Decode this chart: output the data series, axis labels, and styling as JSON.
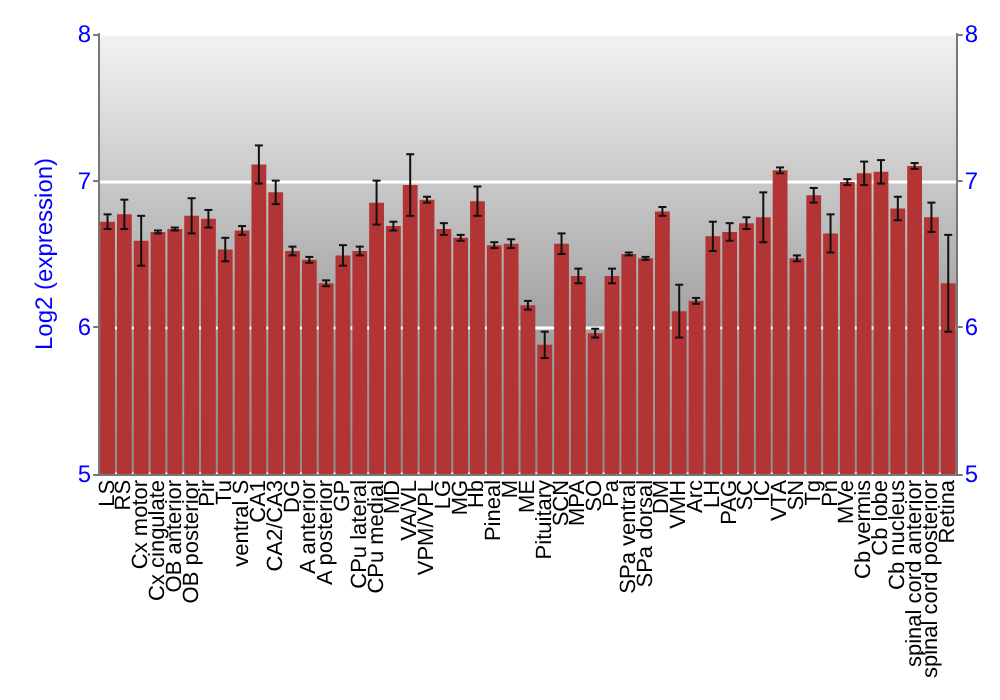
{
  "chart_data": {
    "type": "bar",
    "ylabel": "Log2 (expression)",
    "categories": [
      "LS",
      "RS",
      "Cx motor",
      "Cx cingulate",
      "OB anterior",
      "OB posterior",
      "Pir",
      "Tu",
      "ventral S",
      "CA1",
      "CA2/CA3",
      "DG",
      "A anterior",
      "A posterior",
      "GP",
      "CPu lateral",
      "CPu medial",
      "MD",
      "VA/VL",
      "VPM/VPL",
      "LG",
      "MG",
      "Hb",
      "Pineal",
      "M",
      "ME",
      "Pituitary",
      "SCN",
      "MPA",
      "SO",
      "Pa",
      "SPa ventral",
      "SPa dorsal",
      "DM",
      "VMH",
      "Arc",
      "LH",
      "PAG",
      "SC",
      "IC",
      "VTA",
      "SN",
      "Tg",
      "Pn",
      "MVe",
      "Cb vermis",
      "Cb lobe",
      "Cb nucleus",
      "spinal cord anterior",
      "spinal cord posterior",
      "Retina"
    ],
    "values": [
      6.72,
      6.77,
      6.59,
      6.65,
      6.67,
      6.76,
      6.74,
      6.53,
      6.66,
      7.11,
      6.92,
      6.52,
      6.46,
      6.3,
      6.49,
      6.52,
      6.85,
      6.69,
      6.97,
      6.87,
      6.67,
      6.61,
      6.86,
      6.56,
      6.57,
      6.15,
      5.88,
      6.57,
      6.35,
      5.96,
      6.35,
      6.5,
      6.47,
      6.79,
      6.11,
      6.18,
      6.62,
      6.65,
      6.71,
      6.75,
      7.07,
      6.47,
      6.9,
      6.64,
      6.99,
      7.05,
      7.06,
      6.81,
      7.1,
      6.75,
      6.3
    ],
    "errors": [
      0.05,
      0.1,
      0.17,
      0.01,
      0.01,
      0.12,
      0.06,
      0.08,
      0.03,
      0.13,
      0.08,
      0.03,
      0.02,
      0.02,
      0.07,
      0.03,
      0.15,
      0.03,
      0.21,
      0.02,
      0.04,
      0.02,
      0.1,
      0.02,
      0.03,
      0.03,
      0.09,
      0.07,
      0.05,
      0.03,
      0.05,
      0.01,
      0.01,
      0.03,
      0.18,
      0.02,
      0.1,
      0.06,
      0.04,
      0.17,
      0.02,
      0.02,
      0.05,
      0.13,
      0.02,
      0.08,
      0.08,
      0.08,
      0.02,
      0.1,
      0.33
    ],
    "color": "#b23434",
    "ylim": [
      5,
      8
    ],
    "yticks": [
      5,
      6,
      7,
      8
    ],
    "y2lim": [
      5,
      8
    ],
    "y2ticks": [
      5,
      6,
      7,
      8
    ],
    "grid": "y"
  }
}
